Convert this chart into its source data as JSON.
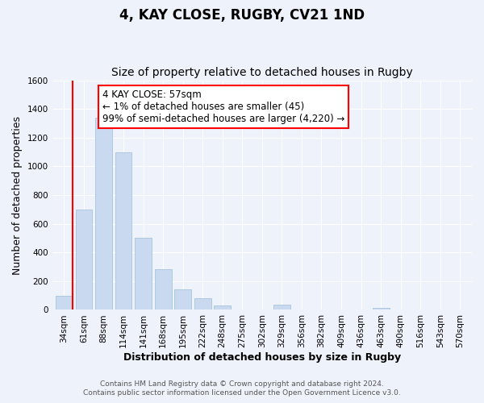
{
  "title": "4, KAY CLOSE, RUGBY, CV21 1ND",
  "subtitle": "Size of property relative to detached houses in Rugby",
  "xlabel": "Distribution of detached houses by size in Rugby",
  "ylabel": "Number of detached properties",
  "bar_labels": [
    "34sqm",
    "61sqm",
    "88sqm",
    "114sqm",
    "141sqm",
    "168sqm",
    "195sqm",
    "222sqm",
    "248sqm",
    "275sqm",
    "302sqm",
    "329sqm",
    "356sqm",
    "382sqm",
    "409sqm",
    "436sqm",
    "463sqm",
    "490sqm",
    "516sqm",
    "543sqm",
    "570sqm"
  ],
  "bar_values": [
    100,
    700,
    1340,
    1100,
    500,
    285,
    145,
    80,
    30,
    0,
    0,
    35,
    0,
    0,
    0,
    0,
    15,
    0,
    0,
    0,
    0
  ],
  "bar_color": "#c8d9f0",
  "bar_edge_color": "#a8c4e0",
  "highlight_bar_index": 0,
  "highlight_edge_color": "red",
  "ylim": [
    0,
    1600
  ],
  "yticks": [
    0,
    200,
    400,
    600,
    800,
    1000,
    1200,
    1400,
    1600
  ],
  "annotation_title": "4 KAY CLOSE: 57sqm",
  "annotation_line1": "← 1% of detached houses are smaller (45)",
  "annotation_line2": "99% of semi-detached houses are larger (4,220) →",
  "footer1": "Contains HM Land Registry data © Crown copyright and database right 2024.",
  "footer2": "Contains public sector information licensed under the Open Government Licence v3.0.",
  "background_color": "#eef2fa",
  "grid_color": "#ffffff",
  "title_fontsize": 12,
  "subtitle_fontsize": 10,
  "axis_label_fontsize": 9,
  "tick_fontsize": 7.5,
  "annotation_fontsize": 8.5,
  "footer_fontsize": 6.5
}
